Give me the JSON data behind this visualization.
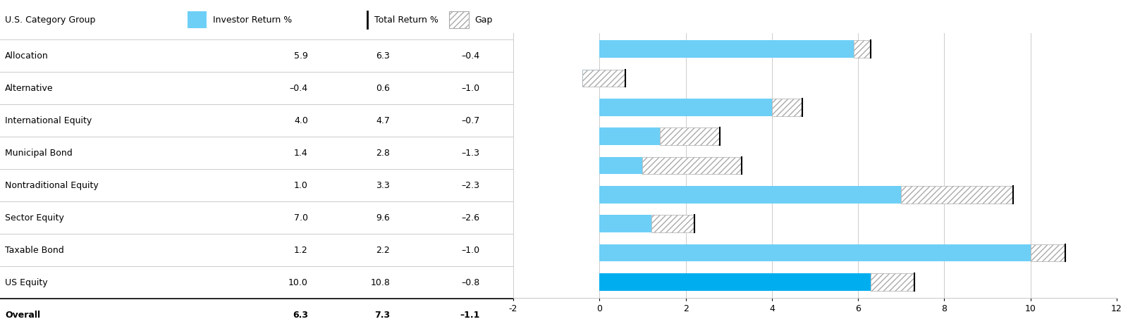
{
  "categories": [
    "Allocation",
    "Alternative",
    "International Equity",
    "Municipal Bond",
    "Nontraditional Equity",
    "Sector Equity",
    "Taxable Bond",
    "US Equity",
    "Overall"
  ],
  "investor_return": [
    5.9,
    -0.4,
    4.0,
    1.4,
    1.0,
    7.0,
    1.2,
    10.0,
    6.3
  ],
  "total_return": [
    6.3,
    0.6,
    4.7,
    2.8,
    3.3,
    9.6,
    2.2,
    10.8,
    7.3
  ],
  "gap": [
    -0.4,
    -1.0,
    -0.7,
    -1.3,
    -2.3,
    -2.6,
    -1.0,
    -0.8,
    -1.1
  ],
  "investor_color_regular": "#6DCFF6",
  "investor_color_overall": "#00AEEF",
  "table_header": "U.S. Category Group",
  "legend_investor": "Investor Return %",
  "legend_total": "Total Return %",
  "legend_gap": "Gap",
  "xlim": [
    -2,
    12
  ],
  "xticks": [
    -2,
    0,
    2,
    4,
    6,
    8,
    10,
    12
  ],
  "bar_height": 0.6,
  "fig_width": 16.0,
  "fig_height": 4.7
}
